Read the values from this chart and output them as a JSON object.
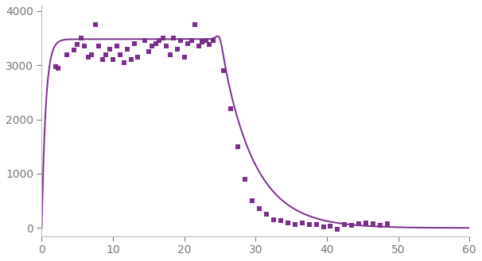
{
  "color": "#7B2D8B",
  "xlim": [
    0,
    60
  ],
  "ylim": [
    -150,
    4100
  ],
  "xticks": [
    0,
    10,
    20,
    30,
    40,
    50,
    60
  ],
  "yticks": [
    0,
    1000,
    2000,
    3000,
    4000
  ],
  "scatter_x": [
    2.0,
    2.3,
    3.5,
    4.5,
    5.0,
    5.5,
    6.0,
    6.5,
    7.0,
    7.5,
    8.0,
    8.5,
    9.0,
    9.5,
    10.0,
    10.5,
    11.0,
    11.5,
    12.0,
    12.5,
    13.0,
    13.5,
    14.5,
    15.0,
    15.5,
    16.0,
    16.5,
    17.0,
    17.5,
    18.0,
    18.5,
    19.0,
    19.5,
    20.0,
    20.5,
    21.0,
    21.5,
    22.0,
    22.5,
    23.0,
    23.5,
    24.0,
    25.5,
    26.5,
    27.5,
    28.5,
    29.5,
    30.5,
    31.5,
    32.5,
    33.5,
    34.5,
    35.5,
    36.5,
    37.5,
    38.5,
    39.5,
    40.5,
    41.5,
    42.5,
    43.5,
    44.5,
    45.5,
    46.5,
    47.5,
    48.5
  ],
  "scatter_y": [
    2980,
    2950,
    3200,
    3280,
    3380,
    3500,
    3350,
    3150,
    3200,
    3750,
    3350,
    3100,
    3200,
    3300,
    3100,
    3350,
    3200,
    3050,
    3300,
    3100,
    3400,
    3150,
    3450,
    3250,
    3350,
    3400,
    3450,
    3500,
    3350,
    3200,
    3500,
    3300,
    3450,
    3150,
    3400,
    3450,
    3750,
    3350,
    3420,
    3450,
    3380,
    3450,
    2900,
    2200,
    1500,
    900,
    500,
    350,
    250,
    150,
    130,
    100,
    70,
    100,
    60,
    70,
    20,
    30,
    -20,
    60,
    50,
    80,
    100,
    80,
    50,
    80
  ],
  "curve_params": {
    "amplitude": 3480,
    "rise_rate": 1.8,
    "plateau_start": 5.0,
    "plateau_end": 25.0,
    "decay_rate": 0.22,
    "sharp_drop": 25.0,
    "sharp_steepness": 4.0
  },
  "background_color": "#ffffff",
  "linewidth": 1.4,
  "marker_size": 18
}
